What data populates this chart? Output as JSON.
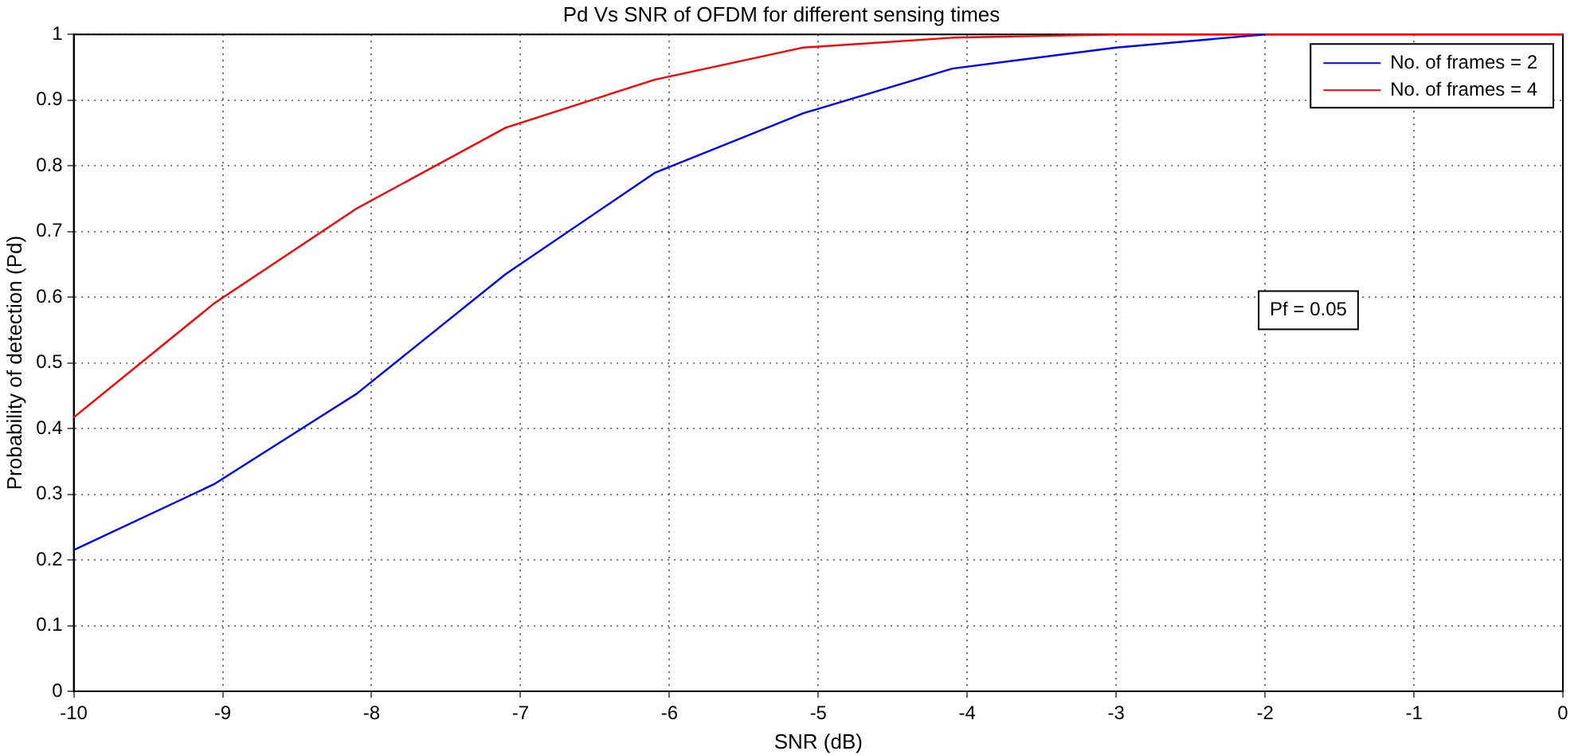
{
  "chart_data": {
    "type": "line",
    "title": "Pd Vs SNR of OFDM for different sensing times",
    "xlabel": "SNR (dB)",
    "ylabel": "Probability of detection (Pd)",
    "x": [
      -10,
      -9.06,
      -8.1,
      -7.1,
      -6.1,
      -5.1,
      -4.1,
      -3,
      -2,
      -1,
      0
    ],
    "series": [
      {
        "name": "No. of frames = 2",
        "color": "#0000ff",
        "values": [
          0.215,
          0.315,
          0.453,
          0.635,
          0.789,
          0.88,
          0.948,
          0.98,
          1,
          null,
          null
        ]
      },
      {
        "name": "No. of frames = 4",
        "color": "#ff0000",
        "values": [
          0.417,
          0.59,
          0.735,
          0.858,
          0.931,
          0.98,
          0.995,
          1,
          1,
          1,
          1
        ]
      }
    ],
    "xlim": [
      -10,
      0
    ],
    "xticks": [
      -10,
      -9,
      -8,
      -7,
      -6,
      -5,
      -4,
      -3,
      -2,
      -1,
      0
    ],
    "ylim": [
      0,
      1
    ],
    "yticks": [
      0,
      0.1,
      0.2,
      0.3,
      0.4,
      0.5,
      0.6,
      0.7,
      0.8,
      0.9,
      1
    ],
    "annotations": [
      "Pf = 0.05"
    ],
    "grid": true,
    "legend": "top right",
    "marker": "none",
    "line_style": "solid"
  }
}
